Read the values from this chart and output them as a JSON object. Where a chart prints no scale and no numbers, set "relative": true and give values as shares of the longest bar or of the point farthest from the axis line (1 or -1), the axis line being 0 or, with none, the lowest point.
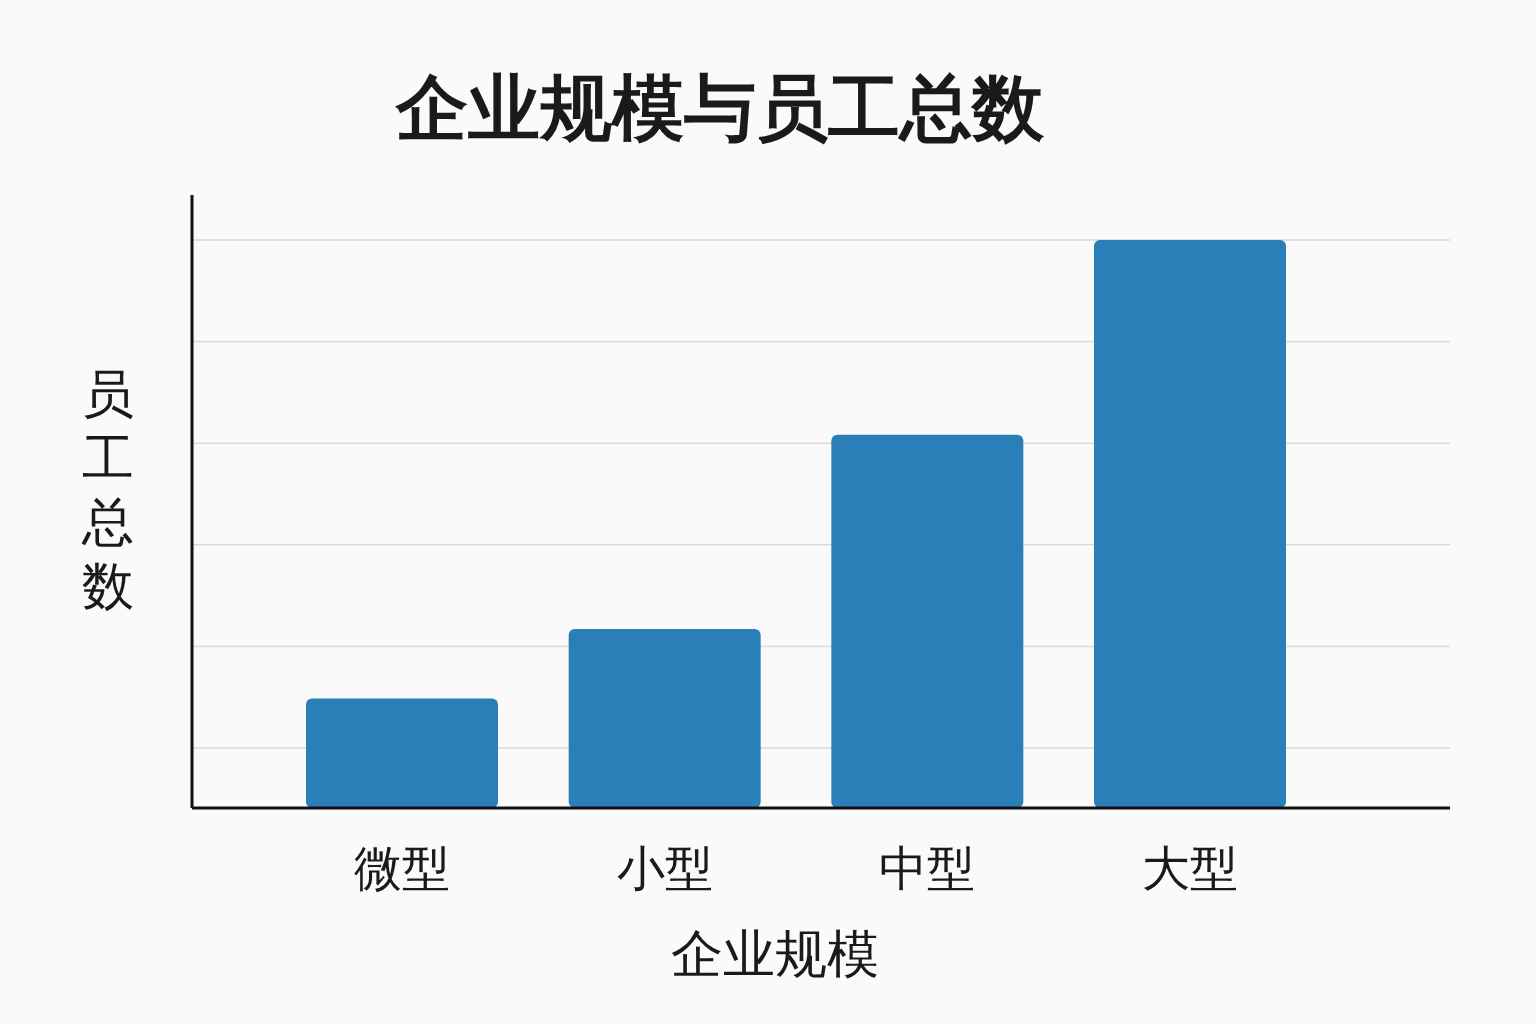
{
  "chart_data": {
    "type": "bar",
    "title": "企业规模与员工总数",
    "xlabel": "企业规模",
    "ylabel": "员工总数",
    "categories": [
      "微型",
      "小型",
      "中型",
      "大型"
    ],
    "values": [
      0.193,
      0.315,
      0.657,
      1
    ],
    "color": "#2a7fb8",
    "relative": true,
    "grid": "y"
  }
}
